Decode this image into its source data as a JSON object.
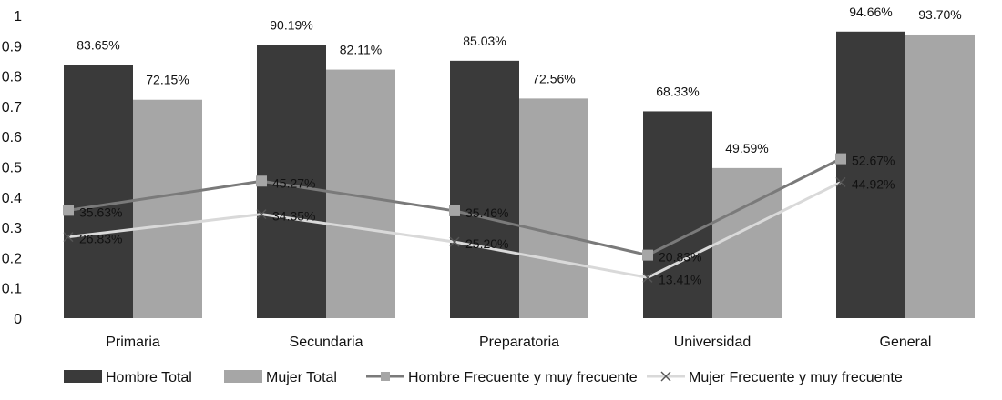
{
  "chart_data": {
    "type": "bar",
    "categories": [
      "Primaria",
      "Secundaria",
      "Preparatoria",
      "Universidad",
      "General"
    ],
    "ylim": [
      0,
      1
    ],
    "yticks": [
      "0",
      "0.1",
      "0.2",
      "0.3",
      "0.4",
      "0.5",
      "0.6",
      "0.7",
      "0.8",
      "0.9",
      "1"
    ],
    "grid": false,
    "legend_position": "bottom",
    "bar_series": [
      {
        "name": "Hombre Total",
        "color": "#3a3a3a",
        "values": [
          0.8365,
          0.9019,
          0.8503,
          0.6833,
          0.9466
        ],
        "labels": [
          "83.65%",
          "90.19%",
          "85.03%",
          "68.33%",
          "94.66%"
        ]
      },
      {
        "name": "Mujer Total",
        "color": "#a6a6a6",
        "values": [
          0.7215,
          0.8211,
          0.7256,
          0.4959,
          0.937
        ],
        "labels": [
          "72.15%",
          "82.11%",
          "72.56%",
          "49.59%",
          "93.70%"
        ]
      }
    ],
    "line_series": [
      {
        "name": "Hombre Frecuente y muy frecuente",
        "color": "#7a7a7a",
        "marker": "square",
        "values": [
          0.3563,
          0.4527,
          0.3546,
          0.2083,
          0.5267
        ],
        "labels": [
          "35.63%",
          "45.27%",
          "35.46%",
          "20.83%",
          "52.67%"
        ]
      },
      {
        "name": "Mujer Frecuente y muy frecuente",
        "color": "#d9d9d9",
        "marker": "x",
        "values": [
          0.2683,
          0.3435,
          0.252,
          0.1341,
          0.4492
        ],
        "labels": [
          "26.83%",
          "34.35%",
          "25.20%",
          "13.41%",
          "44.92%"
        ]
      }
    ]
  }
}
